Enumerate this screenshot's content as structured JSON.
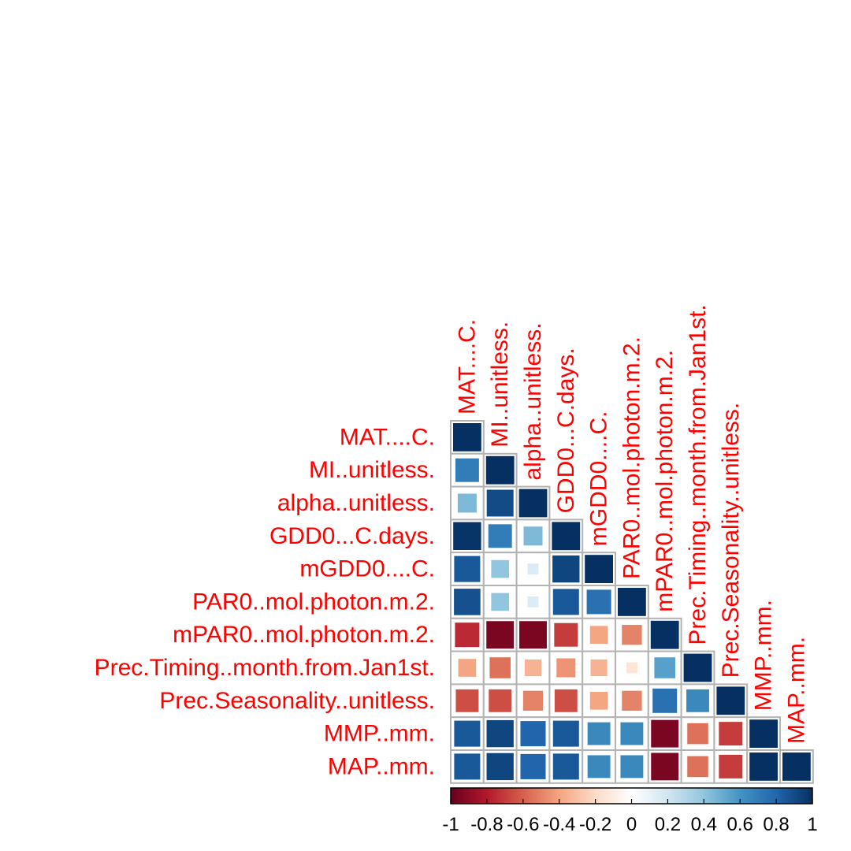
{
  "colors": {
    "label": "#ff0000",
    "cell_border": "#b3b3b3",
    "scale": [
      "#67001f",
      "#b2182b",
      "#d6604d",
      "#f4a582",
      "#fddbc7",
      "#ffffff",
      "#d1e5f0",
      "#92c5de",
      "#4393c3",
      "#2166ac",
      "#053061"
    ]
  },
  "chart_data": {
    "type": "heatmap",
    "title": "",
    "method": "square",
    "layout": "lower",
    "variables": [
      "MAT....C.",
      "MI..unitless.",
      "alpha..unitless.",
      "GDD0...C.days.",
      "mGDD0....C.",
      "PAR0..mol.photon.m.2.",
      "mPAR0..mol.photon.m.2.",
      "Prec.Timing..month.from.Jan1st.",
      "Prec.Seasonality..unitless.",
      "MMP..mm.",
      "MAP..mm."
    ],
    "matrix": [
      [
        1.0
      ],
      [
        0.7,
        1.0
      ],
      [
        0.45,
        0.9,
        1.0
      ],
      [
        0.98,
        0.7,
        0.45,
        1.0
      ],
      [
        0.85,
        0.4,
        0.15,
        0.92,
        1.0
      ],
      [
        0.88,
        0.4,
        0.15,
        0.85,
        0.75,
        1.0
      ],
      [
        -0.75,
        -0.95,
        -0.95,
        -0.7,
        -0.4,
        -0.5,
        1.0
      ],
      [
        -0.4,
        -0.55,
        -0.35,
        -0.45,
        -0.35,
        -0.15,
        0.55,
        1.0
      ],
      [
        -0.65,
        -0.65,
        -0.5,
        -0.65,
        -0.4,
        -0.5,
        0.75,
        0.65,
        1.0
      ],
      [
        0.85,
        0.92,
        0.8,
        0.85,
        0.65,
        0.65,
        -0.95,
        -0.55,
        -0.7,
        1.0
      ],
      [
        0.85,
        0.92,
        0.8,
        0.85,
        0.65,
        0.65,
        -0.95,
        -0.55,
        -0.7,
        1.0,
        1.0
      ]
    ],
    "colorbar": {
      "range": [
        -1,
        1
      ],
      "ticks": [
        "-1",
        "-0.8",
        "-0.6",
        "-0.4",
        "-0.2",
        "0",
        "0.2",
        "0.4",
        "0.6",
        "0.8",
        "1"
      ]
    }
  }
}
